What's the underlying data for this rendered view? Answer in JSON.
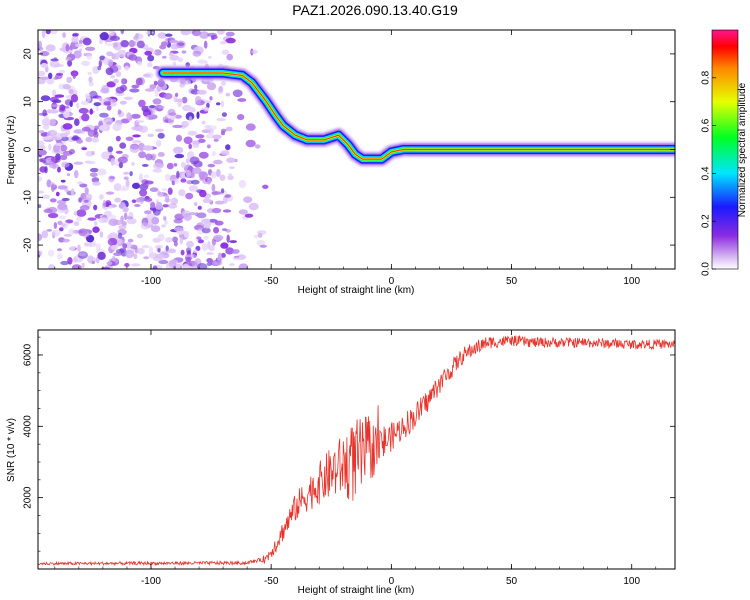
{
  "title": "PAZ1.2026.090.13.40.G19",
  "chart_data": [
    {
      "type": "heatmap",
      "title": "PAZ1.2026.090.13.40.G19",
      "xlabel": "Height of straight line (km)",
      "ylabel": "Frequency (Hz)",
      "xlim": [
        -147,
        118
      ],
      "ylim": [
        -25,
        25
      ],
      "xticks": [
        -100,
        -50,
        0,
        50,
        100
      ],
      "yticks": [
        20,
        10,
        0,
        -10,
        -20
      ],
      "colorbar": {
        "label": "Normalized spectral amplitude",
        "range": [
          0,
          1
        ],
        "ticks": [
          0.0,
          0.2,
          0.4,
          0.6,
          0.8
        ]
      },
      "ridge": {
        "x": [
          -95,
          -90,
          -80,
          -70,
          -62,
          -58,
          -55,
          -52,
          -48,
          -45,
          -40,
          -35,
          -28,
          -22,
          -18,
          -15,
          -12,
          -8,
          -4,
          0,
          5,
          10,
          15,
          20,
          25,
          30,
          40,
          60,
          80,
          100,
          118
        ],
        "y": [
          16,
          16,
          16,
          16,
          15.5,
          14,
          12,
          10,
          7,
          5,
          3,
          2,
          2,
          3,
          1,
          -1,
          -2,
          -2,
          -2,
          -0.5,
          0,
          0,
          0,
          0,
          0,
          0,
          0,
          0,
          0,
          0,
          0
        ]
      },
      "noise_region_x": [
        -147,
        -55
      ],
      "noise_amplitude": 0.1
    },
    {
      "type": "line",
      "xlabel": "Height of straight line (km)",
      "ylabel": "SNR (10 * v/v)",
      "xlim": [
        -147,
        118
      ],
      "ylim": [
        0,
        6700
      ],
      "xticks": [
        -100,
        -50,
        0,
        50,
        100
      ],
      "yticks": [
        2000,
        4000,
        6000
      ],
      "color": "#e8322a",
      "trend": {
        "x": [
          -147,
          -60,
          -52,
          -48,
          -44,
          -40,
          -35,
          -30,
          -25,
          -20,
          -15,
          -10,
          -5,
          0,
          5,
          10,
          15,
          20,
          25,
          30,
          35,
          40,
          50,
          60,
          80,
          100,
          118
        ],
        "y": [
          150,
          170,
          300,
          700,
          1200,
          1700,
          2100,
          2400,
          2700,
          2900,
          3000,
          3300,
          3450,
          3700,
          4000,
          4300,
          4700,
          5200,
          5600,
          6000,
          6200,
          6350,
          6400,
          6350,
          6350,
          6300,
          6300
        ]
      },
      "noise": {
        "x": [
          -147,
          -55,
          -50,
          -40,
          -30,
          -20,
          -15,
          -10,
          -5,
          0,
          10,
          20,
          35,
          50,
          118
        ],
        "amplitude": [
          40,
          50,
          200,
          400,
          600,
          900,
          1200,
          1000,
          600,
          400,
          350,
          300,
          200,
          150,
          130
        ]
      },
      "samples_per_km": 4,
      "end_drop": 3300
    }
  ]
}
